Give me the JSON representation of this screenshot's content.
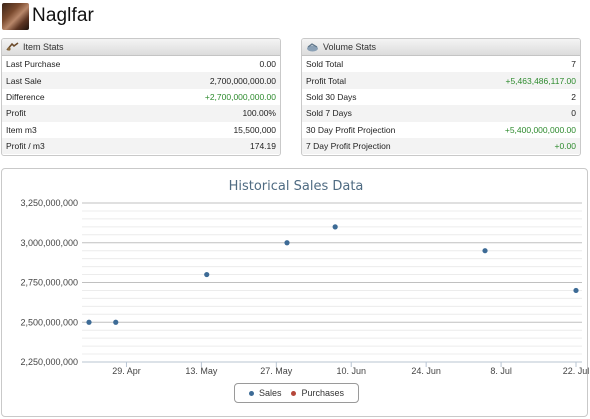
{
  "header": {
    "title": "Naglfar",
    "icon": "ship-thumbnail"
  },
  "item_stats": {
    "title": "Item Stats",
    "icon": "item-stats-icon",
    "rows": [
      {
        "label": "Last Purchase",
        "value": "0.00",
        "tone": "normal"
      },
      {
        "label": "Last Sale",
        "value": "2,700,000,000.00",
        "tone": "normal"
      },
      {
        "label": "Difference",
        "value": "+2,700,000,000.00",
        "tone": "positive"
      },
      {
        "label": "Profit",
        "value": "100.00%",
        "tone": "normal"
      },
      {
        "label": "Item m3",
        "value": "15,500,000",
        "tone": "normal"
      },
      {
        "label": "Profit / m3",
        "value": "174.19",
        "tone": "normal"
      }
    ]
  },
  "volume_stats": {
    "title": "Volume Stats",
    "icon": "volume-stats-icon",
    "rows": [
      {
        "label": "Sold Total",
        "value": "7",
        "tone": "normal"
      },
      {
        "label": "Profit Total",
        "value": "+5,463,486,117.00",
        "tone": "positive"
      },
      {
        "label": "Sold 30 Days",
        "value": "2",
        "tone": "normal"
      },
      {
        "label": "Sold 7 Days",
        "value": "0",
        "tone": "normal"
      },
      {
        "label": "30 Day Profit Projection",
        "value": "+5,400,000,000.00",
        "tone": "positive"
      },
      {
        "label": "7 Day Profit Projection",
        "value": "+0.00",
        "tone": "positive"
      }
    ]
  },
  "colors": {
    "positive": "#2e8b2e",
    "sales": "#3d6b96",
    "purchases": "#b5473a",
    "title": "#4f6b82"
  },
  "chart_data": {
    "type": "scatter",
    "title": "Historical Sales Data",
    "xlabel": "",
    "ylabel": "",
    "ylim": [
      2250000000,
      3250000000
    ],
    "y_ticks": [
      "3,250,000,000",
      "3,000,000,000",
      "2,750,000,000",
      "2,500,000,000",
      "2,250,000,000"
    ],
    "x_ticks": [
      "29. Apr",
      "13. May",
      "27. May",
      "10. Jun",
      "24. Jun",
      "8. Jul",
      "22. Jul"
    ],
    "legend": "bottom-center",
    "grid": true,
    "series": [
      {
        "name": "Sales",
        "points": [
          {
            "x": "2013-04-22",
            "y": 2500000000
          },
          {
            "x": "2013-04-27",
            "y": 2500000000
          },
          {
            "x": "2013-05-14",
            "y": 2800000000
          },
          {
            "x": "2013-05-29",
            "y": 3000000000
          },
          {
            "x": "2013-06-07",
            "y": 3100000000
          },
          {
            "x": "2013-07-05",
            "y": 2950000000
          },
          {
            "x": "2013-07-22",
            "y": 2700000000
          }
        ]
      },
      {
        "name": "Purchases",
        "points": []
      }
    ]
  }
}
